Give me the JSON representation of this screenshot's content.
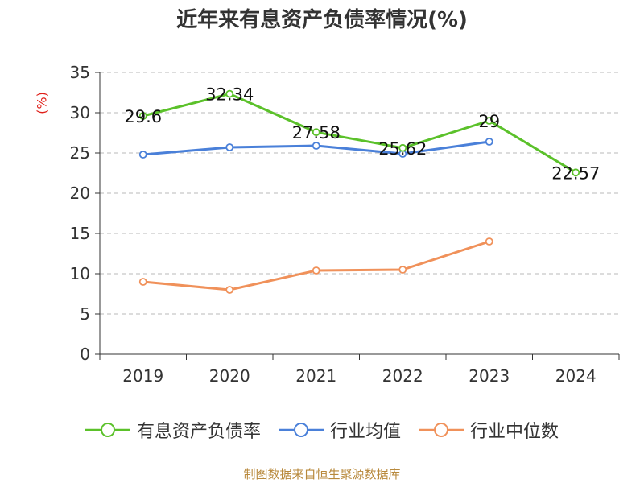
{
  "chart_data": {
    "type": "line",
    "title": "近年来有息资产负债率情况(%)",
    "ylabel": "(%)",
    "xlabel": "",
    "categories": [
      "2019",
      "2020",
      "2021",
      "2022",
      "2023",
      "2024"
    ],
    "ylim": [
      0,
      35
    ],
    "yticks": [
      0,
      5,
      10,
      15,
      20,
      25,
      30,
      35
    ],
    "grid": true,
    "legend_position": "bottom",
    "series": [
      {
        "name": "有息资产负债率",
        "color": "#5bc12a",
        "values": [
          29.6,
          32.34,
          27.58,
          25.62,
          29,
          22.57
        ],
        "labels": [
          "29.6",
          "32.34",
          "27.58",
          "25.62",
          "29",
          "22.57"
        ]
      },
      {
        "name": "行业均值",
        "color": "#4a80d9",
        "values": [
          24.8,
          25.7,
          25.9,
          24.9,
          26.4,
          null
        ]
      },
      {
        "name": "行业中位数",
        "color": "#f0915a",
        "values": [
          9.0,
          8.0,
          10.4,
          10.5,
          14.0,
          null
        ]
      }
    ]
  },
  "source": "制图数据来自恒生聚源数据库"
}
